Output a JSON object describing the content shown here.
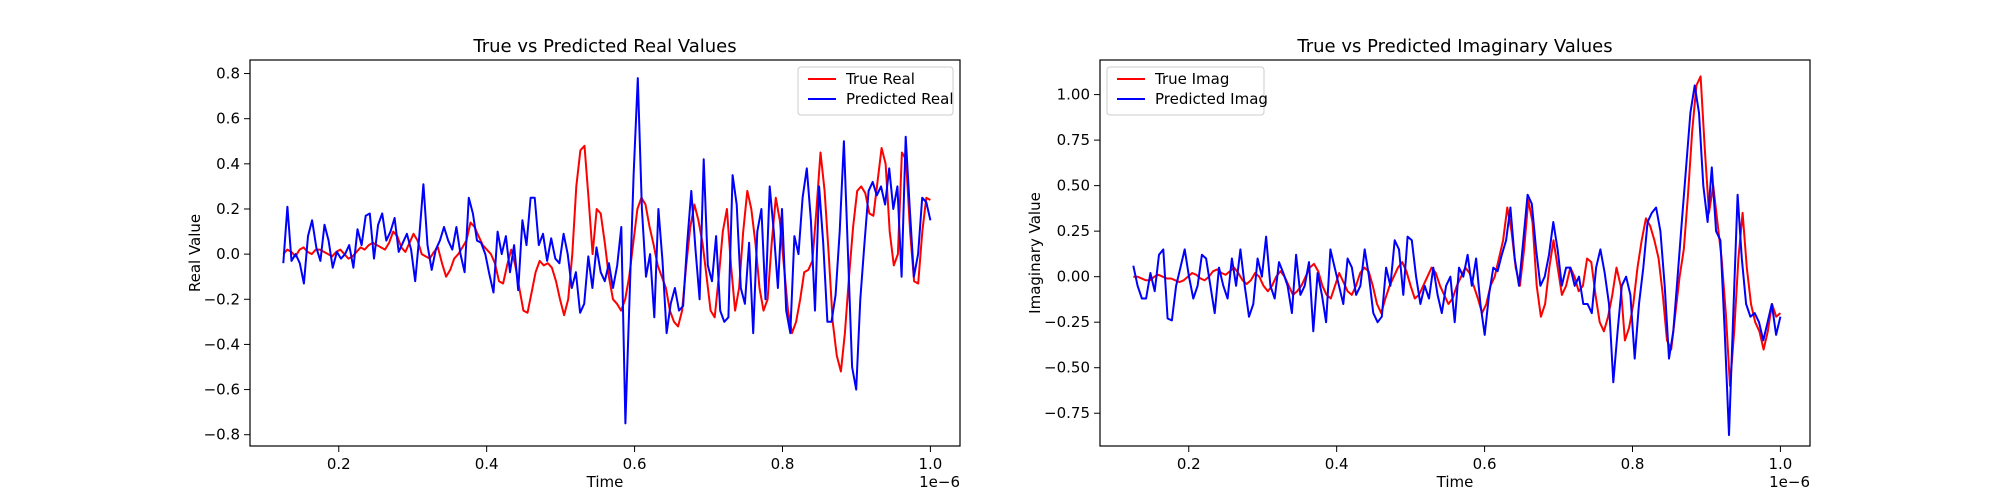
{
  "chart_data": [
    {
      "type": "line",
      "title": "True vs Predicted Real Values",
      "xlabel": "Time",
      "ylabel": "Real Value",
      "x_scale_label": "1e−6",
      "xlim": [
        0.08,
        1.04
      ],
      "ylim": [
        -0.85,
        0.86
      ],
      "xticks": [
        0.2,
        0.4,
        0.6,
        0.8,
        1.0
      ],
      "xtick_labels": [
        "0.2",
        "0.4",
        "0.6",
        "0.8",
        "1.0"
      ],
      "yticks": [
        -0.8,
        -0.6,
        -0.4,
        -0.2,
        0.0,
        0.2,
        0.4,
        0.6,
        0.8
      ],
      "ytick_labels": [
        "−0.8",
        "−0.6",
        "−0.4",
        "−0.2",
        "0.0",
        "0.2",
        "0.4",
        "0.6",
        "0.8"
      ],
      "legend_position": "upper right",
      "x_range": [
        0.125,
        1.0
      ],
      "series": [
        {
          "name": "True Real",
          "color": "#ff0000",
          "values": [
            0.0,
            0.02,
            0.01,
            -0.01,
            0.02,
            0.03,
            0.01,
            0.0,
            0.02,
            0.02,
            0.01,
            0.0,
            -0.01,
            0.01,
            0.02,
            0.0,
            -0.02,
            -0.01,
            0.01,
            0.03,
            0.02,
            0.04,
            0.05,
            0.04,
            0.03,
            0.02,
            0.05,
            0.1,
            0.08,
            0.03,
            0.01,
            0.05,
            0.09,
            0.06,
            0.0,
            -0.01,
            -0.02,
            0.01,
            0.03,
            -0.04,
            -0.1,
            -0.07,
            -0.02,
            0.0,
            0.03,
            0.06,
            0.14,
            0.12,
            0.08,
            0.04,
            0.02,
            0.0,
            -0.04,
            -0.12,
            -0.13,
            -0.05,
            0.02,
            -0.05,
            -0.15,
            -0.25,
            -0.26,
            -0.17,
            -0.08,
            -0.03,
            -0.05,
            -0.04,
            -0.06,
            -0.12,
            -0.2,
            -0.27,
            -0.2,
            0.0,
            0.3,
            0.46,
            0.48,
            0.25,
            0.0,
            0.2,
            0.18,
            0.05,
            -0.1,
            -0.2,
            -0.22,
            -0.25,
            -0.2,
            -0.1,
            0.05,
            0.2,
            0.25,
            0.22,
            0.12,
            0.04,
            -0.05,
            -0.1,
            -0.15,
            -0.25,
            -0.3,
            -0.32,
            -0.25,
            -0.05,
            0.12,
            0.22,
            0.15,
            0.05,
            -0.1,
            -0.25,
            -0.28,
            -0.1,
            0.1,
            0.2,
            -0.05,
            -0.25,
            -0.15,
            0.1,
            0.28,
            0.2,
            0.05,
            -0.15,
            -0.25,
            -0.2,
            0.05,
            0.25,
            0.15,
            -0.05,
            -0.25,
            -0.35,
            -0.3,
            -0.2,
            -0.08,
            -0.07,
            -0.03,
            0.2,
            0.45,
            0.28,
            0.0,
            -0.3,
            -0.45,
            -0.52,
            -0.35,
            -0.1,
            0.12,
            0.28,
            0.3,
            0.27,
            0.18,
            0.17,
            0.32,
            0.47,
            0.4,
            0.1,
            -0.05,
            0.0,
            0.45,
            0.42,
            0.1,
            -0.12,
            -0.13,
            0.1,
            0.25,
            0.24
          ]
        },
        {
          "name": "Predicted Real",
          "color": "#0000ff",
          "values": [
            -0.04,
            0.21,
            -0.03,
            0.0,
            -0.04,
            -0.13,
            0.08,
            0.15,
            0.03,
            -0.03,
            0.13,
            0.06,
            -0.06,
            0.01,
            -0.02,
            0.0,
            0.04,
            -0.06,
            0.11,
            0.04,
            0.17,
            0.18,
            -0.02,
            0.13,
            0.18,
            0.06,
            0.1,
            0.16,
            0.01,
            0.05,
            0.09,
            0.02,
            -0.12,
            0.08,
            0.31,
            0.04,
            -0.07,
            0.02,
            0.06,
            0.12,
            0.06,
            0.02,
            0.12,
            0.0,
            -0.08,
            0.25,
            0.18,
            0.06,
            0.05,
            0.0,
            -0.09,
            -0.17,
            0.1,
            0.0,
            0.08,
            -0.08,
            0.04,
            -0.16,
            0.15,
            0.04,
            0.25,
            0.25,
            0.04,
            0.09,
            -0.03,
            0.07,
            -0.02,
            -0.04,
            0.09,
            0.0,
            -0.15,
            -0.08,
            -0.26,
            -0.22,
            -0.01,
            -0.15,
            0.03,
            -0.08,
            -0.12,
            -0.04,
            -0.15,
            -0.05,
            0.12,
            -0.75,
            -0.2,
            0.35,
            0.78,
            0.2,
            -0.1,
            0.0,
            -0.28,
            0.2,
            -0.03,
            -0.35,
            -0.22,
            -0.15,
            -0.25,
            -0.23,
            0.05,
            0.28,
            0.02,
            -0.2,
            0.42,
            -0.05,
            -0.12,
            0.08,
            -0.25,
            -0.3,
            -0.28,
            0.35,
            0.22,
            -0.15,
            -0.22,
            0.05,
            -0.35,
            0.1,
            0.2,
            -0.2,
            0.3,
            0.1,
            -0.15,
            0.2,
            -0.25,
            -0.35,
            0.08,
            0.0,
            0.25,
            0.38,
            0.15,
            -0.25,
            0.3,
            0.05,
            -0.3,
            -0.3,
            -0.18,
            0.1,
            0.5,
            0.0,
            -0.5,
            -0.6,
            -0.2,
            0.05,
            0.28,
            0.32,
            0.26,
            0.3,
            0.22,
            0.38,
            0.2,
            0.3,
            -0.1,
            0.52,
            0.2,
            -0.1,
            0.0,
            0.25,
            0.23,
            0.15
          ]
        }
      ]
    },
    {
      "type": "line",
      "title": "True vs Predicted Imaginary Values",
      "xlabel": "Time",
      "ylabel": "Imaginary Value",
      "x_scale_label": "1e−6",
      "xlim": [
        0.08,
        1.04
      ],
      "ylim": [
        -0.93,
        1.19
      ],
      "xticks": [
        0.2,
        0.4,
        0.6,
        0.8,
        1.0
      ],
      "xtick_labels": [
        "0.2",
        "0.4",
        "0.6",
        "0.8",
        "1.0"
      ],
      "yticks": [
        -0.75,
        -0.5,
        -0.25,
        0.0,
        0.25,
        0.5,
        0.75,
        1.0
      ],
      "ytick_labels": [
        "−0.75",
        "−0.50",
        "−0.25",
        "0.00",
        "0.25",
        "0.50",
        "0.75",
        "1.00"
      ],
      "legend_position": "upper left",
      "x_range": [
        0.125,
        1.0
      ],
      "series": [
        {
          "name": "True Imag",
          "color": "#ff0000",
          "values": [
            0.0,
            0.0,
            -0.01,
            -0.02,
            -0.02,
            0.0,
            0.01,
            0.0,
            -0.01,
            -0.01,
            -0.02,
            -0.03,
            -0.02,
            0.0,
            0.02,
            0.01,
            -0.01,
            -0.02,
            0.0,
            0.03,
            0.04,
            0.02,
            0.01,
            0.03,
            0.05,
            0.02,
            -0.02,
            -0.04,
            -0.02,
            0.02,
            0.0,
            -0.05,
            -0.08,
            -0.05,
            0.0,
            0.03,
            0.0,
            -0.05,
            -0.1,
            -0.08,
            -0.05,
            0.0,
            0.05,
            0.07,
            0.03,
            -0.05,
            -0.1,
            -0.12,
            -0.05,
            0.02,
            -0.03,
            -0.08,
            -0.1,
            -0.05,
            0.02,
            0.05,
            0.03,
            -0.05,
            -0.15,
            -0.2,
            -0.12,
            -0.05,
            0.0,
            0.05,
            0.08,
            0.03,
            -0.05,
            -0.12,
            -0.1,
            -0.05,
            0.0,
            0.05,
            0.02,
            -0.05,
            -0.1,
            -0.15,
            -0.12,
            -0.05,
            0.0,
            0.05,
            0.02,
            -0.05,
            -0.12,
            -0.2,
            -0.15,
            -0.05,
            0.0,
            0.1,
            0.2,
            0.38,
            0.25,
            0.05,
            -0.05,
            0.15,
            0.42,
            0.3,
            -0.05,
            -0.22,
            -0.15,
            0.05,
            0.2,
            0.05,
            -0.1,
            -0.05,
            0.05,
            0.0,
            -0.08,
            -0.05,
            0.1,
            0.08,
            -0.1,
            -0.25,
            -0.3,
            -0.22,
            -0.1,
            0.05,
            -0.05,
            -0.35,
            -0.28,
            -0.15,
            0.05,
            0.2,
            0.32,
            0.28,
            0.2,
            0.1,
            -0.1,
            -0.35,
            -0.4,
            -0.2,
            0.0,
            0.15,
            0.45,
            0.8,
            1.05,
            1.1,
            0.7,
            0.35,
            0.5,
            0.3,
            0.1,
            -0.2,
            -0.6,
            -0.3,
            0.1,
            0.35,
            0.05,
            -0.15,
            -0.25,
            -0.3,
            -0.4,
            -0.3,
            -0.15,
            -0.22,
            -0.2
          ]
        },
        {
          "name": "Predicted Imag",
          "color": "#0000ff",
          "values": [
            0.06,
            -0.05,
            -0.12,
            -0.12,
            0.02,
            -0.08,
            0.12,
            0.15,
            -0.23,
            -0.24,
            -0.05,
            0.05,
            0.15,
            0.0,
            -0.12,
            -0.05,
            0.12,
            0.1,
            -0.05,
            -0.2,
            0.05,
            -0.05,
            -0.12,
            0.1,
            -0.05,
            0.15,
            -0.05,
            -0.22,
            -0.15,
            0.1,
            0.0,
            0.22,
            -0.05,
            -0.12,
            0.08,
            0.02,
            -0.05,
            -0.2,
            0.12,
            -0.1,
            -0.05,
            0.08,
            -0.3,
            0.02,
            -0.1,
            -0.25,
            0.15,
            0.05,
            -0.05,
            -0.15,
            0.1,
            0.05,
            -0.1,
            -0.05,
            0.15,
            0.0,
            -0.2,
            -0.25,
            -0.22,
            0.05,
            -0.05,
            0.2,
            0.15,
            -0.1,
            0.22,
            0.2,
            0.0,
            -0.15,
            -0.05,
            -0.12,
            0.05,
            -0.1,
            -0.2,
            -0.05,
            0.0,
            -0.25,
            0.05,
            0.0,
            0.12,
            -0.05,
            0.1,
            -0.15,
            -0.32,
            -0.1,
            0.05,
            0.03,
            0.12,
            0.2,
            0.38,
            0.1,
            -0.05,
            0.2,
            0.45,
            0.4,
            0.15,
            -0.05,
            0.0,
            0.12,
            0.3,
            0.15,
            -0.05,
            0.05,
            0.05,
            -0.05,
            0.0,
            -0.15,
            -0.15,
            -0.2,
            0.05,
            0.15,
            0.02,
            -0.15,
            -0.58,
            -0.3,
            -0.05,
            0.0,
            -0.1,
            -0.45,
            -0.15,
            0.05,
            0.3,
            0.35,
            0.38,
            0.25,
            -0.05,
            -0.45,
            -0.3,
            0.0,
            0.3,
            0.6,
            0.9,
            1.05,
            0.9,
            0.5,
            0.3,
            0.6,
            0.25,
            0.2,
            -0.3,
            -0.87,
            -0.2,
            0.45,
            0.1,
            -0.15,
            -0.22,
            -0.2,
            -0.25,
            -0.35,
            -0.25,
            -0.15,
            -0.32,
            -0.22
          ]
        }
      ]
    }
  ]
}
